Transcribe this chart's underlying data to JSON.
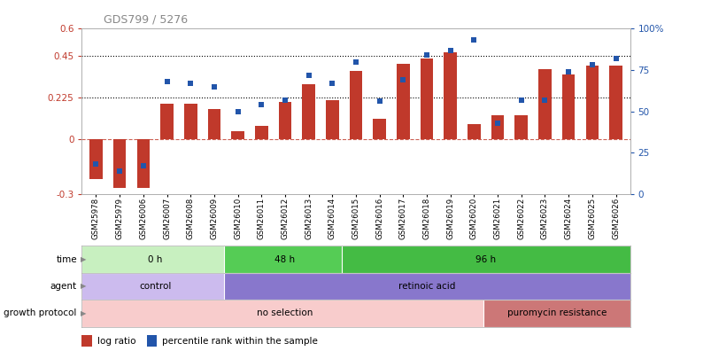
{
  "title": "GDS799 / 5276",
  "samples": [
    "GSM25978",
    "GSM25979",
    "GSM26006",
    "GSM26007",
    "GSM26008",
    "GSM26009",
    "GSM26010",
    "GSM26011",
    "GSM26012",
    "GSM26013",
    "GSM26014",
    "GSM26015",
    "GSM26016",
    "GSM26017",
    "GSM26018",
    "GSM26019",
    "GSM26020",
    "GSM26021",
    "GSM26022",
    "GSM26023",
    "GSM26024",
    "GSM26025",
    "GSM26026"
  ],
  "log_ratio": [
    -0.22,
    -0.27,
    -0.27,
    0.19,
    0.19,
    0.16,
    0.04,
    0.07,
    0.2,
    0.3,
    0.21,
    0.37,
    0.11,
    0.41,
    0.44,
    0.47,
    0.08,
    0.13,
    0.13,
    0.38,
    0.35,
    0.4,
    0.4
  ],
  "percentile": [
    18,
    14,
    17,
    68,
    67,
    65,
    50,
    54,
    57,
    72,
    67,
    80,
    56,
    69,
    84,
    87,
    93,
    43,
    57,
    57,
    74,
    78,
    82
  ],
  "bar_color": "#c0392b",
  "dot_color": "#2255aa",
  "ylim_left": [
    -0.3,
    0.6
  ],
  "ylim_right": [
    0,
    100
  ],
  "yticks_left": [
    -0.3,
    0,
    0.225,
    0.45,
    0.6
  ],
  "ytick_labels_left": [
    "-0.3",
    "0",
    "0.225",
    "0.45",
    "0.6"
  ],
  "yticks_right": [
    0,
    25,
    50,
    75,
    100
  ],
  "ytick_labels_right": [
    "0",
    "25",
    "50",
    "75",
    "100%"
  ],
  "hlines": [
    0.225,
    0.45
  ],
  "time_groups": [
    {
      "label": "0 h",
      "start": 0,
      "end": 6,
      "color": "#c8f0c0"
    },
    {
      "label": "48 h",
      "start": 6,
      "end": 11,
      "color": "#55cc55"
    },
    {
      "label": "96 h",
      "start": 11,
      "end": 23,
      "color": "#44bb44"
    }
  ],
  "agent_groups": [
    {
      "label": "control",
      "start": 0,
      "end": 6,
      "color": "#ccbbee"
    },
    {
      "label": "retinoic acid",
      "start": 6,
      "end": 23,
      "color": "#8877cc"
    }
  ],
  "growth_groups": [
    {
      "label": "no selection",
      "start": 0,
      "end": 17,
      "color": "#f8cccc"
    },
    {
      "label": "puromycin resistance",
      "start": 17,
      "end": 23,
      "color": "#cc7777"
    }
  ],
  "row_labels": [
    "time",
    "agent",
    "growth protocol"
  ],
  "legend_items": [
    {
      "label": "log ratio",
      "color": "#c0392b"
    },
    {
      "label": "percentile rank within the sample",
      "color": "#2255aa"
    }
  ]
}
